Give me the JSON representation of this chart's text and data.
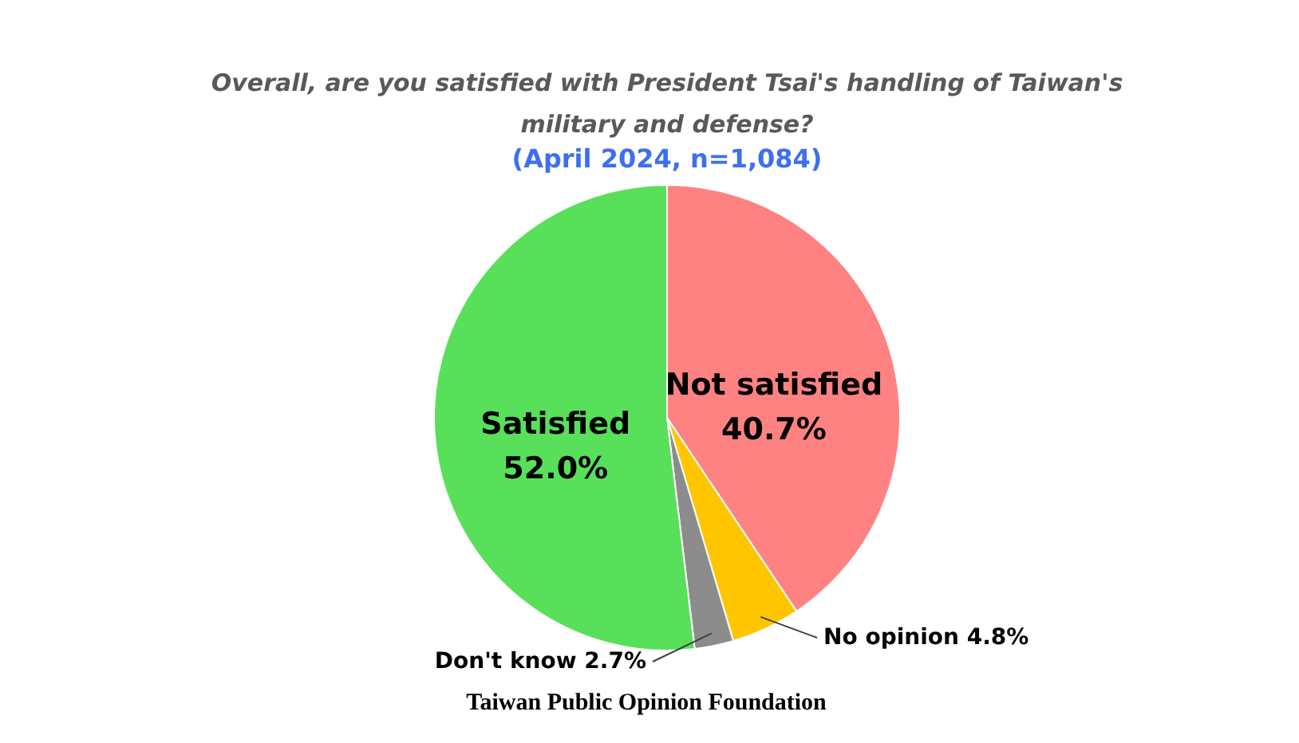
{
  "chart_data": {
    "type": "pie",
    "title": "Overall, are you satisfied with President Tsai's handling of Taiwan's military and defense?",
    "subtitle": "(April 2024, n=1,084)",
    "categories": [
      "Not satisfied",
      "No opinion",
      "Don't know",
      "Satisfied"
    ],
    "values": [
      40.7,
      4.8,
      2.7,
      52.0
    ],
    "colors": [
      "#ff8282",
      "#ffc600",
      "#8c8c8c",
      "#58e05a"
    ],
    "value_labels": [
      "40.7%",
      "4.8%",
      "2.7%",
      "52.0%"
    ],
    "legend": false,
    "annotations": [
      "Taiwan Public Opinion Foundation"
    ]
  }
}
